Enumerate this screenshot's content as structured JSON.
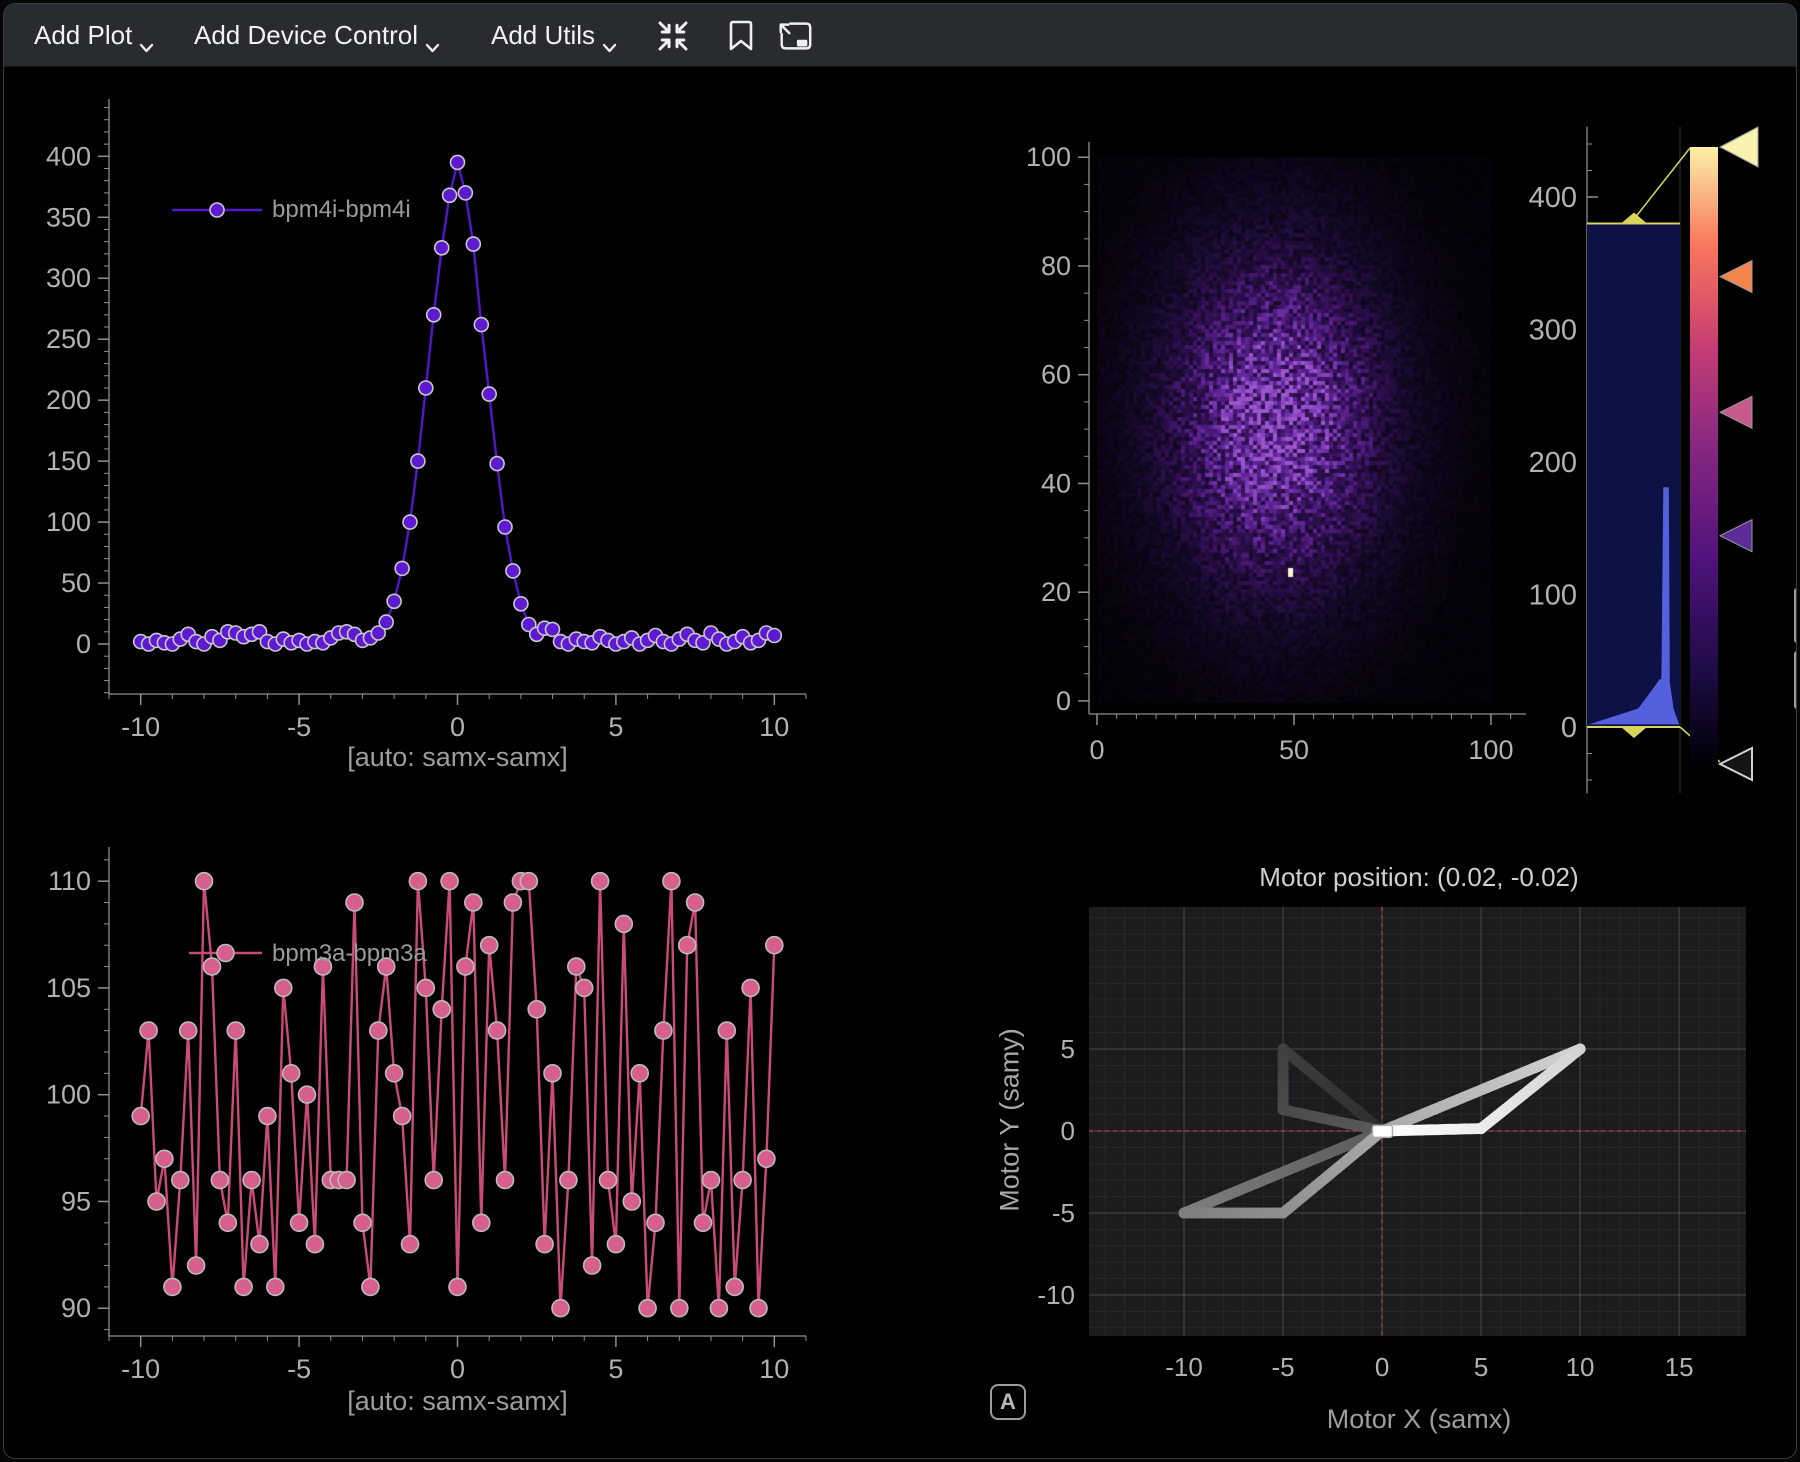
{
  "toolbar": {
    "menus": [
      {
        "label": "Add Plot"
      },
      {
        "label": "Add Device Control"
      },
      {
        "label": "Add Utils"
      }
    ],
    "icon_buttons": [
      "compress",
      "bookmark",
      "expand"
    ]
  },
  "chart_data": [
    {
      "id": "waveform",
      "type": "line",
      "legend": "bpm4i-bpm4i",
      "xlabel": "[auto: samx-samx]",
      "x_ticks": [
        -10,
        -5,
        0,
        5,
        10
      ],
      "y_ticks": [
        0,
        50,
        100,
        150,
        200,
        250,
        300,
        350,
        400
      ],
      "xlim": [
        -11,
        11
      ],
      "ylim": [
        -41,
        447
      ],
      "x_start": -10,
      "x_step": 0.25,
      "line_color": "#5316c9",
      "marker_fill": "#5d1ad1",
      "marker_stroke": "#c9c9c9",
      "y": [
        2,
        0,
        3,
        1,
        0,
        4,
        8,
        2,
        0,
        6,
        3,
        10,
        9,
        6,
        8,
        10,
        2,
        0,
        4,
        1,
        3,
        0,
        2,
        1,
        5,
        9,
        10,
        8,
        3,
        5,
        9,
        18,
        35,
        62,
        100,
        150,
        210,
        270,
        325,
        368,
        395,
        370,
        328,
        262,
        205,
        148,
        96,
        60,
        33,
        16,
        8,
        13,
        12,
        2,
        0,
        4,
        2,
        1,
        6,
        3,
        0,
        2,
        5,
        0,
        3,
        7,
        2,
        0,
        4,
        8,
        3,
        1,
        9,
        4,
        0,
        2,
        6,
        1,
        3,
        9,
        7
      ]
    },
    {
      "id": "image",
      "type": "heatmap",
      "x_ticks": [
        0,
        50,
        100
      ],
      "y_ticks": [
        0,
        20,
        40,
        60,
        80,
        100
      ],
      "xlim": [
        0,
        100
      ],
      "ylim": [
        0,
        100
      ],
      "blob": {
        "cx": 45,
        "cy": 52,
        "sigma_x": 21,
        "sigma_y": 23,
        "seed": 11
      },
      "noise_floor": 0.05,
      "colormap": [
        "#020104",
        "#150929",
        "#341057",
        "#61259a",
        "#9a55cf"
      ],
      "marker": {
        "x": 49,
        "y": 24,
        "color": "#fdf8da"
      }
    },
    {
      "id": "colorbar",
      "type": "histogram-lut",
      "ticks": [
        0,
        100,
        200,
        300,
        400
      ],
      "range": [
        -50,
        453
      ],
      "region": [
        0,
        380
      ],
      "region_fill": "#0d1144",
      "region_edge": "#d8d45c",
      "hist_color": "#5560dd",
      "hist_polygon": [
        [
          0.02,
          2
        ],
        [
          0.55,
          14
        ],
        [
          0.72,
          30
        ],
        [
          0.78,
          36
        ],
        [
          0.8,
          36
        ],
        [
          0.82,
          181
        ],
        [
          0.88,
          181
        ],
        [
          0.89,
          34
        ],
        [
          0.93,
          14
        ],
        [
          0.99,
          2
        ]
      ],
      "gradient": [
        {
          "p": 0,
          "c": "#000004"
        },
        {
          "p": 0.14,
          "c": "#1b0b41"
        },
        {
          "p": 0.33,
          "c": "#4f127b"
        },
        {
          "p": 0.52,
          "c": "#892881"
        },
        {
          "p": 0.68,
          "c": "#c73e73"
        },
        {
          "p": 0.84,
          "c": "#f8765c"
        },
        {
          "p": 1,
          "c": "#fcf0a8"
        }
      ],
      "handles": [
        {
          "frac": 0,
          "color": "#f7f2ad",
          "big": true
        },
        {
          "frac": 0.21,
          "color": "#f5854f"
        },
        {
          "frac": 0.43,
          "color": "#c75a8c"
        },
        {
          "frac": 0.63,
          "color": "#5c2d96"
        },
        {
          "frac": 1,
          "color": "#141414",
          "stroke": "#d2d2d2"
        }
      ]
    },
    {
      "id": "scatter",
      "type": "line",
      "legend": "bpm3a-bpm3a",
      "xlabel": "[auto: samx-samx]",
      "x_ticks": [
        -10,
        -5,
        0,
        5,
        10
      ],
      "y_ticks": [
        90,
        95,
        100,
        105,
        110
      ],
      "xlim": [
        -11,
        11
      ],
      "ylim": [
        88.7,
        111.6
      ],
      "x_start": -10,
      "x_step": 0.25,
      "line_color": "#c84b78",
      "marker_fill": "#d75f8d",
      "marker_stroke": "#bbbbbb",
      "y": [
        99,
        103,
        95,
        97,
        91,
        96,
        103,
        92,
        110,
        106,
        96,
        94,
        103,
        91,
        96,
        93,
        99,
        91,
        105,
        101,
        94,
        100,
        93,
        106,
        96,
        96,
        96,
        109,
        94,
        91,
        103,
        106,
        101,
        99,
        93,
        110,
        105,
        96,
        104,
        110,
        91,
        106,
        109,
        94,
        107,
        103,
        96,
        109,
        110,
        110,
        104,
        93,
        101,
        90,
        96,
        106,
        105,
        92,
        110,
        96,
        93,
        108,
        95,
        101,
        90,
        94,
        103,
        110,
        90,
        107,
        109,
        94,
        96,
        90,
        103,
        91,
        96,
        105,
        90,
        97,
        107
      ]
    },
    {
      "id": "motormap",
      "type": "trajectory",
      "title": "Motor position: (0.02, -0.02)",
      "xlabel": "Motor X (samx)",
      "ylabel": "Motor Y (samy)",
      "x_ticks": [
        -10,
        -5,
        0,
        5,
        10,
        15
      ],
      "y_ticks": [
        5,
        0,
        -5,
        -10
      ],
      "panel_bg": "#1c1c1e",
      "grid_minor": "rgba(255,255,255,0.05)",
      "grid_major": "rgba(255,255,255,0.16)",
      "crosshair": "#c64444",
      "path": [
        [
          0,
          0
        ],
        [
          -5,
          5
        ],
        [
          -5,
          1.3
        ],
        [
          0,
          0
        ],
        [
          -10,
          -5
        ],
        [
          -5,
          -5
        ],
        [
          0,
          0
        ],
        [
          10,
          5
        ],
        [
          5,
          0.15
        ],
        [
          0,
          0
        ]
      ],
      "current": [
        0.02,
        -0.02
      ],
      "trail": {
        "start_gray": 46,
        "end_gray": 255,
        "dot_radius": 5.5,
        "spacing": 0.16
      },
      "auto_button_label": "A"
    }
  ]
}
